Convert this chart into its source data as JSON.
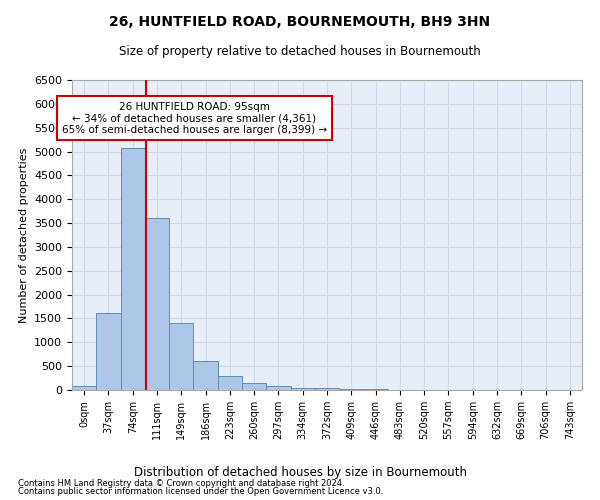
{
  "title": "26, HUNTFIELD ROAD, BOURNEMOUTH, BH9 3HN",
  "subtitle": "Size of property relative to detached houses in Bournemouth",
  "xlabel": "Distribution of detached houses by size in Bournemouth",
  "ylabel": "Number of detached properties",
  "footer_line1": "Contains HM Land Registry data © Crown copyright and database right 2024.",
  "footer_line2": "Contains public sector information licensed under the Open Government Licence v3.0.",
  "bar_labels": [
    "0sqm",
    "37sqm",
    "74sqm",
    "111sqm",
    "149sqm",
    "186sqm",
    "223sqm",
    "260sqm",
    "297sqm",
    "334sqm",
    "372sqm",
    "409sqm",
    "446sqm",
    "483sqm",
    "520sqm",
    "557sqm",
    "594sqm",
    "632sqm",
    "669sqm",
    "706sqm",
    "743sqm"
  ],
  "bar_values": [
    75,
    1620,
    5080,
    3600,
    1400,
    610,
    300,
    140,
    80,
    50,
    40,
    30,
    20,
    10,
    5,
    3,
    2,
    2,
    1,
    1,
    1
  ],
  "bar_color": "#aec6e8",
  "bar_edge_color": "#5b8db8",
  "vline_color": "#cc0000",
  "ylim": [
    0,
    6500
  ],
  "yticks": [
    0,
    500,
    1000,
    1500,
    2000,
    2500,
    3000,
    3500,
    4000,
    4500,
    5000,
    5500,
    6000,
    6500
  ],
  "annotation_text": "26 HUNTFIELD ROAD: 95sqm\n← 34% of detached houses are smaller (4,361)\n65% of semi-detached houses are larger (8,399) →",
  "annotation_box_color": "#ffffff",
  "annotation_box_edge_color": "#cc0000",
  "grid_color": "#d0d8e8",
  "background_color": "#e8eef8",
  "title_fontsize": 10,
  "subtitle_fontsize": 8.5
}
